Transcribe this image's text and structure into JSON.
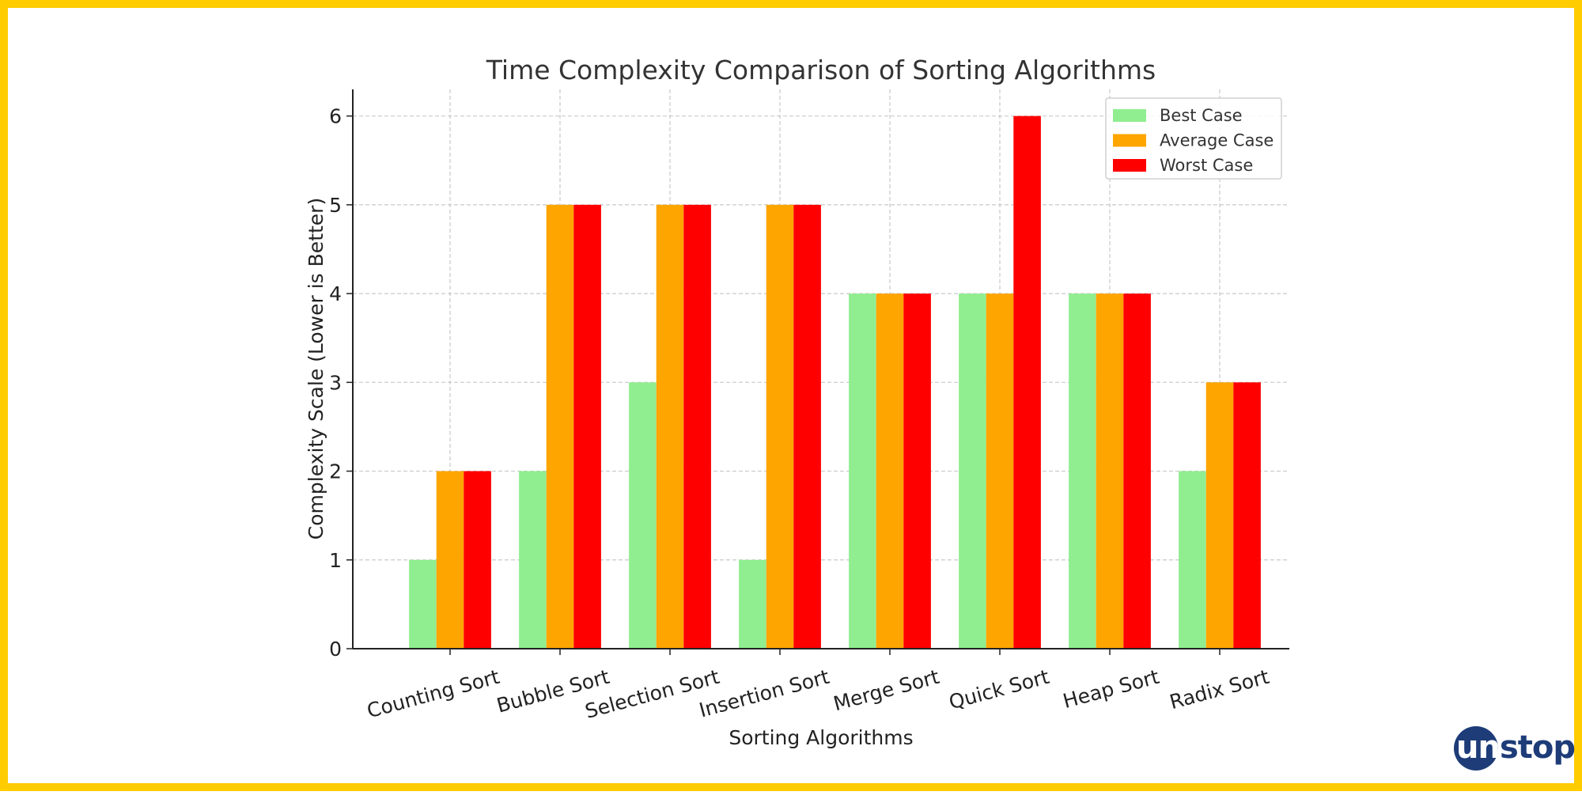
{
  "chart_data": {
    "type": "bar",
    "title": "Time Complexity Comparison of Sorting Algorithms",
    "xlabel": "Sorting Algorithms",
    "ylabel": "Complexity Scale (Lower is Better)",
    "categories": [
      "Counting Sort",
      "Bubble Sort",
      "Selection Sort",
      "Insertion Sort",
      "Merge Sort",
      "Quick Sort",
      "Heap Sort",
      "Radix Sort"
    ],
    "series": [
      {
        "name": "Best Case",
        "color": "#90EE90",
        "values": [
          1,
          2,
          3,
          1,
          4,
          4,
          4,
          2
        ]
      },
      {
        "name": "Average Case",
        "color": "#FFA500",
        "values": [
          2,
          5,
          5,
          5,
          4,
          4,
          4,
          3
        ]
      },
      {
        "name": "Worst Case",
        "color": "#FF0000",
        "values": [
          2,
          5,
          5,
          5,
          4,
          6,
          4,
          3
        ]
      }
    ],
    "ylim": [
      0,
      6.3
    ],
    "yticks": [
      0,
      1,
      2,
      3,
      4,
      5,
      6
    ],
    "grid": true,
    "legend_position": "top-right"
  },
  "logo": {
    "text_part1": "un",
    "text_part2": "stop",
    "brand_color": "#1d3c78"
  },
  "frame_color": "#FFCC00"
}
